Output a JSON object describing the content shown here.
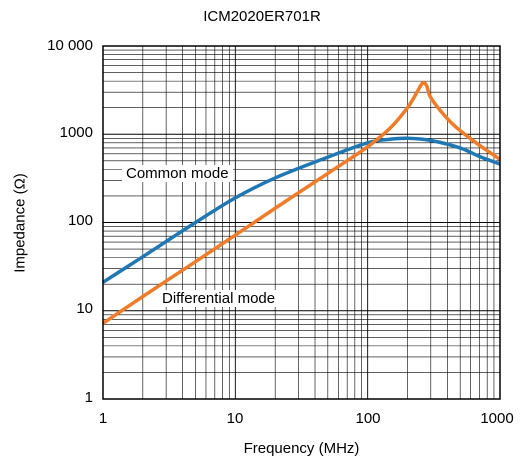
{
  "chart_data": {
    "type": "line",
    "title": "ICM2020ER701R",
    "xlabel": "Frequency (MHz)",
    "ylabel": "Impedance (Ω)",
    "x_scale": "log",
    "y_scale": "log",
    "xlim": [
      1,
      1000
    ],
    "ylim": [
      1,
      10000
    ],
    "x_ticks": [
      "1",
      "10",
      "100",
      "1000"
    ],
    "y_ticks": [
      "1",
      "10",
      "100",
      "1000",
      "10 000"
    ],
    "grid": true,
    "annotations": [
      "Common mode",
      "Differential mode"
    ],
    "series": [
      {
        "name": "Common mode",
        "color": "#1f77b4",
        "x": [
          1,
          2,
          5,
          10,
          20,
          50,
          100,
          150,
          200,
          300,
          500,
          700,
          1000
        ],
        "y": [
          21,
          41,
          100,
          190,
          320,
          550,
          800,
          880,
          900,
          850,
          700,
          560,
          460
        ]
      },
      {
        "name": "Differential mode",
        "color": "#f07c2a",
        "x": [
          1,
          2,
          5,
          10,
          20,
          50,
          100,
          150,
          200,
          230,
          260,
          280,
          300,
          400,
          500,
          700,
          1000
        ],
        "y": [
          7.2,
          14.5,
          36,
          72,
          145,
          360,
          720,
          1200,
          2000,
          2800,
          3800,
          3500,
          2600,
          1500,
          1100,
          750,
          520
        ]
      }
    ]
  }
}
